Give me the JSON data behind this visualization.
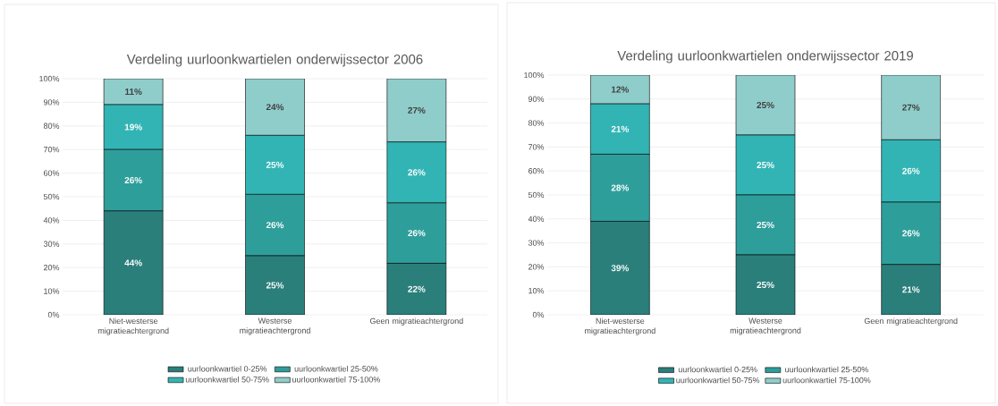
{
  "chart_data": [
    {
      "type": "bar",
      "stacked": true,
      "title": "Verdeling uurloonkwartielen onderwijssector 2006",
      "categories": [
        "Niet-westerse migratieachtergrond",
        "Westerse migratieachtergrond",
        "Geen migratieachtergrond"
      ],
      "ylim": [
        0,
        100
      ],
      "yticks": [
        {
          "value": 0,
          "label": "0%"
        },
        {
          "value": 10,
          "label": "10%"
        },
        {
          "value": 20,
          "label": "20%"
        },
        {
          "value": 30,
          "label": "30%"
        },
        {
          "value": 40,
          "label": "40%"
        },
        {
          "value": 50,
          "label": "50%"
        },
        {
          "value": 60,
          "label": "60%"
        },
        {
          "value": 70,
          "label": "70%"
        },
        {
          "value": 80,
          "label": "80%"
        },
        {
          "value": 90,
          "label": "90%"
        },
        {
          "value": 100,
          "label": "100%"
        }
      ],
      "grid": "y",
      "legend": "bottom",
      "series": [
        {
          "name": "uurloonkwartiel 0-25%",
          "color": "#2a7f7b",
          "values": [
            44,
            25,
            21.8
          ],
          "value_labels": [
            "44%",
            "25%",
            "22%"
          ]
        },
        {
          "name": "uurloonkwartiel 25-50%",
          "color": "#2e9e9b",
          "values": [
            26,
            26,
            25.6
          ],
          "value_labels": [
            "26%",
            "26%",
            "26%"
          ]
        },
        {
          "name": "uurloonkwartiel 50-75%",
          "color": "#33b4b4",
          "values": [
            19,
            25,
            25.8
          ],
          "value_labels": [
            "19%",
            "25%",
            "26%"
          ]
        },
        {
          "name": "uurloonkwartiel 75-100%",
          "color": "#8fcdcb",
          "values": [
            11,
            24,
            26.8
          ],
          "value_labels": [
            "11%",
            "24%",
            "27%"
          ]
        }
      ]
    },
    {
      "type": "bar",
      "stacked": true,
      "title": "Verdeling uurloonkwartielen onderwijssector 2019",
      "categories": [
        "Niet-westerse migratieachtergrond",
        "Westerse migratieachtergrond",
        "Geen migratieachtergrond"
      ],
      "ylim": [
        0,
        100
      ],
      "yticks": [
        {
          "value": 0,
          "label": "0%"
        },
        {
          "value": 10,
          "label": "10%"
        },
        {
          "value": 20,
          "label": "20%"
        },
        {
          "value": 30,
          "label": "30%"
        },
        {
          "value": 40,
          "label": "40%"
        },
        {
          "value": 50,
          "label": "50%"
        },
        {
          "value": 60,
          "label": "60%"
        },
        {
          "value": 70,
          "label": "70%"
        },
        {
          "value": 80,
          "label": "80%"
        },
        {
          "value": 90,
          "label": "90%"
        },
        {
          "value": 100,
          "label": "100%"
        }
      ],
      "grid": "y",
      "legend": "bottom",
      "series": [
        {
          "name": "uurloonkwartiel 0-25%",
          "color": "#2a7f7b",
          "values": [
            39,
            25,
            21
          ],
          "value_labels": [
            "39%",
            "25%",
            "21%"
          ]
        },
        {
          "name": "uurloonkwartiel 25-50%",
          "color": "#2e9e9b",
          "values": [
            28,
            25,
            26
          ],
          "value_labels": [
            "28%",
            "25%",
            "26%"
          ]
        },
        {
          "name": "uurloonkwartiel 50-75%",
          "color": "#33b4b4",
          "values": [
            21,
            25,
            26
          ],
          "value_labels": [
            "21%",
            "25%",
            "26%"
          ]
        },
        {
          "name": "uurloonkwartiel 75-100%",
          "color": "#8fcdcb",
          "values": [
            12,
            25,
            27
          ],
          "value_labels": [
            "12%",
            "25%",
            "27%"
          ]
        }
      ]
    }
  ]
}
